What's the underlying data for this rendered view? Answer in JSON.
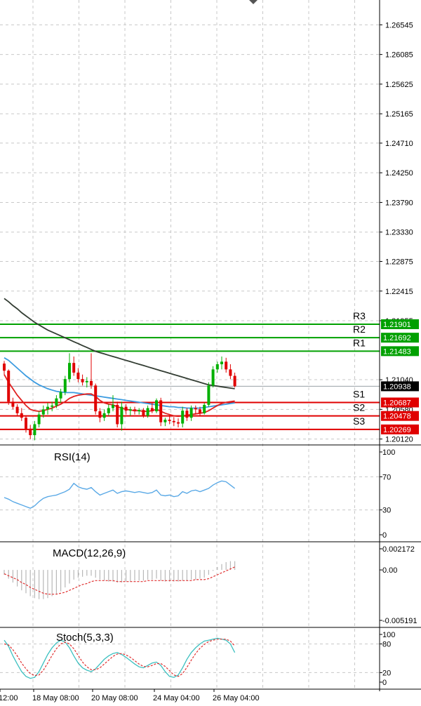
{
  "chart_data": [
    {
      "type": "candlestick",
      "ylim": [
        1.2005,
        1.2693
      ],
      "y_ticks": [
        "1.26545",
        "1.26085",
        "1.25625",
        "1.25165",
        "1.24710",
        "1.24250",
        "1.23790",
        "1.23330",
        "1.22875",
        "1.22415",
        "1.21955",
        "1.21040",
        "1.20580",
        "1.20120"
      ],
      "x_ticks": [
        "12:00",
        "18 May 08:00",
        "20 May 08:00",
        "24 May 04:00",
        "26 May 04:00"
      ],
      "levels": [
        {
          "label": "R3",
          "value": 1.21901,
          "tag": "1.21901",
          "color": "#00a000"
        },
        {
          "label": "R2",
          "value": 1.21692,
          "tag": "1.21692",
          "color": "#00a000"
        },
        {
          "label": "R1",
          "value": 1.21483,
          "tag": "1.21483",
          "color": "#00a000"
        },
        {
          "label": "S1",
          "value": 1.20687,
          "tag": "1.20687",
          "color": "#e00000"
        },
        {
          "label": "S2",
          "value": 1.20478,
          "tag": "1.20478",
          "color": "#e00000"
        },
        {
          "label": "S3",
          "value": 1.20269,
          "tag": "1.20269",
          "color": "#e00000"
        }
      ],
      "current_price": {
        "value": 1.20938,
        "tag": "1.20938"
      },
      "candles": [
        [
          1.2129,
          1.2133,
          1.2112,
          1.2118
        ],
        [
          1.2118,
          1.212,
          1.2065,
          1.207
        ],
        [
          1.207,
          1.2076,
          1.2058,
          1.2062
        ],
        [
          1.2062,
          1.2066,
          1.2048,
          1.2052
        ],
        [
          1.2052,
          1.206,
          1.204,
          1.2045
        ],
        [
          1.2045,
          1.2048,
          1.2022,
          1.2028
        ],
        [
          1.2028,
          1.2034,
          1.2012,
          1.2018
        ],
        [
          1.2018,
          1.204,
          1.201,
          1.2035
        ],
        [
          1.2035,
          1.2055,
          1.203,
          1.205
        ],
        [
          1.205,
          1.2064,
          1.2045,
          1.2058
        ],
        [
          1.2058,
          1.2068,
          1.205,
          1.2062
        ],
        [
          1.2062,
          1.207,
          1.2055,
          1.2064
        ],
        [
          1.2064,
          1.208,
          1.206,
          1.2075
        ],
        [
          1.2075,
          1.209,
          1.2068,
          1.2085
        ],
        [
          1.2085,
          1.211,
          1.208,
          1.2105
        ],
        [
          1.2105,
          1.2145,
          1.21,
          1.213
        ],
        [
          1.213,
          1.214,
          1.211,
          1.2115
        ],
        [
          1.2115,
          1.2122,
          1.21,
          1.2105
        ],
        [
          1.2105,
          1.2112,
          1.2095,
          1.21
        ],
        [
          1.21,
          1.2108,
          1.2092,
          1.2102
        ],
        [
          1.2102,
          1.2145,
          1.209,
          1.2095
        ],
        [
          1.2095,
          1.2098,
          1.205,
          1.2055
        ],
        [
          1.2055,
          1.206,
          1.2038,
          1.2045
        ],
        [
          1.2045,
          1.2058,
          1.204,
          1.2052
        ],
        [
          1.2052,
          1.2066,
          1.2048,
          1.206
        ],
        [
          1.206,
          1.208,
          1.2055,
          1.2065
        ],
        [
          1.2065,
          1.207,
          1.203,
          1.2035
        ],
        [
          1.2035,
          1.207,
          1.2025,
          1.2062
        ],
        [
          1.2062,
          1.2066,
          1.205,
          1.2056
        ],
        [
          1.2056,
          1.2062,
          1.2048,
          1.2058
        ],
        [
          1.2058,
          1.2062,
          1.205,
          1.2055
        ],
        [
          1.2055,
          1.206,
          1.205,
          1.2057
        ],
        [
          1.2057,
          1.206,
          1.2045,
          1.2048
        ],
        [
          1.2048,
          1.2064,
          1.2045,
          1.206
        ],
        [
          1.206,
          1.2068,
          1.2052,
          1.2055
        ],
        [
          1.2055,
          1.2075,
          1.2052,
          1.2072
        ],
        [
          1.2072,
          1.2076,
          1.2032,
          1.2038
        ],
        [
          1.2038,
          1.2045,
          1.2032,
          1.2042
        ],
        [
          1.2042,
          1.2048,
          1.2035,
          1.204
        ],
        [
          1.204,
          1.2046,
          1.2032,
          1.2038
        ],
        [
          1.2038,
          1.2044,
          1.203,
          1.2036
        ],
        [
          1.2036,
          1.2062,
          1.203,
          1.2056
        ],
        [
          1.2056,
          1.206,
          1.204,
          1.2045
        ],
        [
          1.2045,
          1.2064,
          1.204,
          1.206
        ],
        [
          1.206,
          1.2064,
          1.205,
          1.2058
        ],
        [
          1.2058,
          1.2062,
          1.2048,
          1.2052
        ],
        [
          1.2052,
          1.2068,
          1.205,
          1.2065
        ],
        [
          1.2065,
          1.21,
          1.2062,
          1.2095
        ],
        [
          1.2095,
          1.2125,
          1.2092,
          1.212
        ],
        [
          1.212,
          1.2132,
          1.2115,
          1.2128
        ],
        [
          1.2128,
          1.214,
          1.212,
          1.2132
        ],
        [
          1.2132,
          1.2138,
          1.2115,
          1.212
        ],
        [
          1.212,
          1.2128,
          1.2105,
          1.211
        ],
        [
          1.211,
          1.2115,
          1.2092,
          1.2094
        ]
      ],
      "ma_slow": [
        1.223,
        1.2225,
        1.2219,
        1.2214,
        1.2208,
        1.2203,
        1.2198,
        1.2193,
        1.2189,
        1.2185,
        1.2181,
        1.2178,
        1.2175,
        1.2172,
        1.2169,
        1.2166,
        1.2163,
        1.216,
        1.2157,
        1.2154,
        1.2151,
        1.2148,
        1.2146,
        1.2144,
        1.2142,
        1.214,
        1.2138,
        1.2136,
        1.2134,
        1.2132,
        1.213,
        1.2128,
        1.2126,
        1.2124,
        1.2122,
        1.212,
        1.2118,
        1.2116,
        1.2114,
        1.2112,
        1.211,
        1.2108,
        1.2106,
        1.2104,
        1.2102,
        1.21,
        1.2098,
        1.2096,
        1.2095,
        1.2094,
        1.2093,
        1.2092,
        1.2091,
        1.209
      ],
      "ma_mid": [
        1.2138,
        1.2134,
        1.2128,
        1.2122,
        1.2116,
        1.211,
        1.2105,
        1.21,
        1.2096,
        1.2093,
        1.209,
        1.2088,
        1.2086,
        1.2085,
        1.2084,
        1.2084,
        1.2084,
        1.2083,
        1.2082,
        1.2081,
        1.208,
        1.2079,
        1.2078,
        1.2077,
        1.2076,
        1.2075,
        1.2074,
        1.2073,
        1.2072,
        1.2071,
        1.207,
        1.2069,
        1.2068,
        1.2067,
        1.2066,
        1.2065,
        1.2064,
        1.2063,
        1.2062,
        1.2062,
        1.2061,
        1.2061,
        1.206,
        1.206,
        1.206,
        1.206,
        1.2061,
        1.2062,
        1.2063,
        1.2064,
        1.2065,
        1.2066,
        1.2067,
        1.2068
      ],
      "ma_fast": [
        1.2112,
        1.21,
        1.209,
        1.208,
        1.2072,
        1.2064,
        1.2058,
        1.2056,
        1.2055,
        1.2056,
        1.2058,
        1.206,
        1.2063,
        1.2066,
        1.207,
        1.2075,
        1.2078,
        1.208,
        1.2081,
        1.2082,
        1.2082,
        1.2078,
        1.2072,
        1.2068,
        1.2066,
        1.2065,
        1.2062,
        1.206,
        1.2058,
        1.2057,
        1.2056,
        1.2056,
        1.2055,
        1.2055,
        1.2056,
        1.2058,
        1.2055,
        1.2052,
        1.205,
        1.2048,
        1.2047,
        1.2048,
        1.2049,
        1.205,
        1.2051,
        1.2052,
        1.2053,
        1.2056,
        1.206,
        1.2064,
        1.2067,
        1.2069,
        1.207,
        1.2071
      ]
    },
    {
      "type": "line",
      "title": "RSI(14)",
      "ylim": [
        0,
        100
      ],
      "y_ticks": [
        "100",
        "70",
        "30",
        "0"
      ],
      "values": [
        45,
        43,
        40,
        38,
        36,
        34,
        32,
        35,
        40,
        44,
        46,
        47,
        48,
        50,
        52,
        55,
        62,
        58,
        56,
        55,
        57,
        52,
        48,
        50,
        52,
        54,
        50,
        52,
        53,
        52,
        51,
        52,
        51,
        50,
        51,
        54,
        48,
        47,
        48,
        46,
        47,
        52,
        50,
        53,
        54,
        52,
        54,
        56,
        60,
        63,
        65,
        64,
        60,
        56
      ]
    },
    {
      "type": "bar",
      "title": "MACD(12,26,9)",
      "ylim": [
        -0.005191,
        0.002172
      ],
      "y_ticks": [
        "0.002172",
        "0.00",
        "-0.005191"
      ],
      "values": [
        -0.0005,
        -0.0009,
        -0.0013,
        -0.0017,
        -0.0021,
        -0.0024,
        -0.0027,
        -0.0029,
        -0.003,
        -0.003,
        -0.0029,
        -0.0027,
        -0.0025,
        -0.0022,
        -0.0018,
        -0.0014,
        -0.001,
        -0.0008,
        -0.0007,
        -0.0006,
        -0.0006,
        -0.0008,
        -0.001,
        -0.0011,
        -0.0012,
        -0.0012,
        -0.0013,
        -0.0013,
        -0.0012,
        -0.0012,
        -0.0011,
        -0.0011,
        -0.0011,
        -0.001,
        -0.001,
        -0.0009,
        -0.0011,
        -0.0012,
        -0.0012,
        -0.0012,
        -0.0012,
        -0.0011,
        -0.0011,
        -0.001,
        -0.001,
        -0.0009,
        -0.0008,
        -0.0005,
        -0.0001,
        0.0003,
        0.0006,
        0.0008,
        0.0009,
        0.0009
      ],
      "signal": [
        -0.0004,
        -0.0006,
        -0.0008,
        -0.001,
        -0.0013,
        -0.0015,
        -0.0018,
        -0.002,
        -0.0022,
        -0.0024,
        -0.0025,
        -0.0025,
        -0.0025,
        -0.0024,
        -0.0023,
        -0.0021,
        -0.0019,
        -0.0017,
        -0.0015,
        -0.0014,
        -0.0012,
        -0.0011,
        -0.0011,
        -0.0011,
        -0.0011,
        -0.0011,
        -0.0012,
        -0.0012,
        -0.0012,
        -0.0012,
        -0.0012,
        -0.0012,
        -0.0012,
        -0.0011,
        -0.0011,
        -0.0011,
        -0.0011,
        -0.0011,
        -0.0011,
        -0.0011,
        -0.0011,
        -0.0011,
        -0.0011,
        -0.0011,
        -0.001,
        -0.001,
        -0.001,
        -0.0009,
        -0.0007,
        -0.0005,
        -0.0003,
        -0.0001,
        0.0001,
        0.0003
      ]
    },
    {
      "type": "line",
      "title": "Stoch(5,3,3)",
      "ylim": [
        0,
        100
      ],
      "y_ticks": [
        "100",
        "80",
        "20",
        "0"
      ],
      "k": [
        88,
        75,
        55,
        38,
        22,
        12,
        8,
        10,
        22,
        40,
        58,
        72,
        82,
        88,
        84,
        72,
        55,
        40,
        30,
        25,
        22,
        28,
        38,
        48,
        55,
        60,
        62,
        58,
        52,
        45,
        38,
        32,
        30,
        35,
        40,
        42,
        35,
        22,
        12,
        10,
        15,
        30,
        48,
        62,
        72,
        80,
        86,
        88,
        90,
        92,
        90,
        88,
        80,
        62
      ],
      "d": [
        80,
        78,
        68,
        55,
        40,
        28,
        18,
        14,
        15,
        25,
        40,
        56,
        70,
        80,
        84,
        80,
        70,
        56,
        42,
        32,
        26,
        26,
        30,
        38,
        46,
        54,
        59,
        60,
        57,
        52,
        45,
        38,
        33,
        32,
        35,
        39,
        39,
        33,
        24,
        15,
        12,
        18,
        31,
        46,
        60,
        71,
        79,
        85,
        88,
        90,
        90,
        90,
        86,
        76
      ]
    }
  ]
}
